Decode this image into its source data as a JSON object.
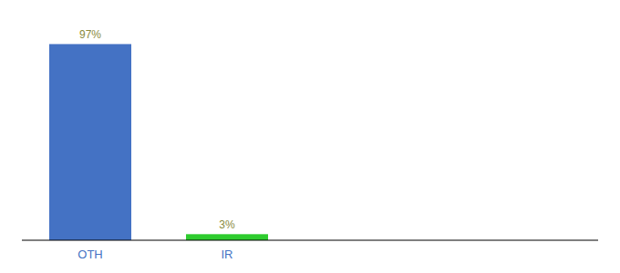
{
  "chart_data": {
    "type": "bar",
    "categories": [
      "OTH",
      "IR"
    ],
    "values": [
      97,
      3
    ],
    "value_labels": [
      "97%",
      "3%"
    ],
    "colors": [
      "#4472c4",
      "#2ecc2e"
    ],
    "ylim": [
      0,
      108
    ],
    "data_labels": true,
    "tick_labels": "x"
  }
}
